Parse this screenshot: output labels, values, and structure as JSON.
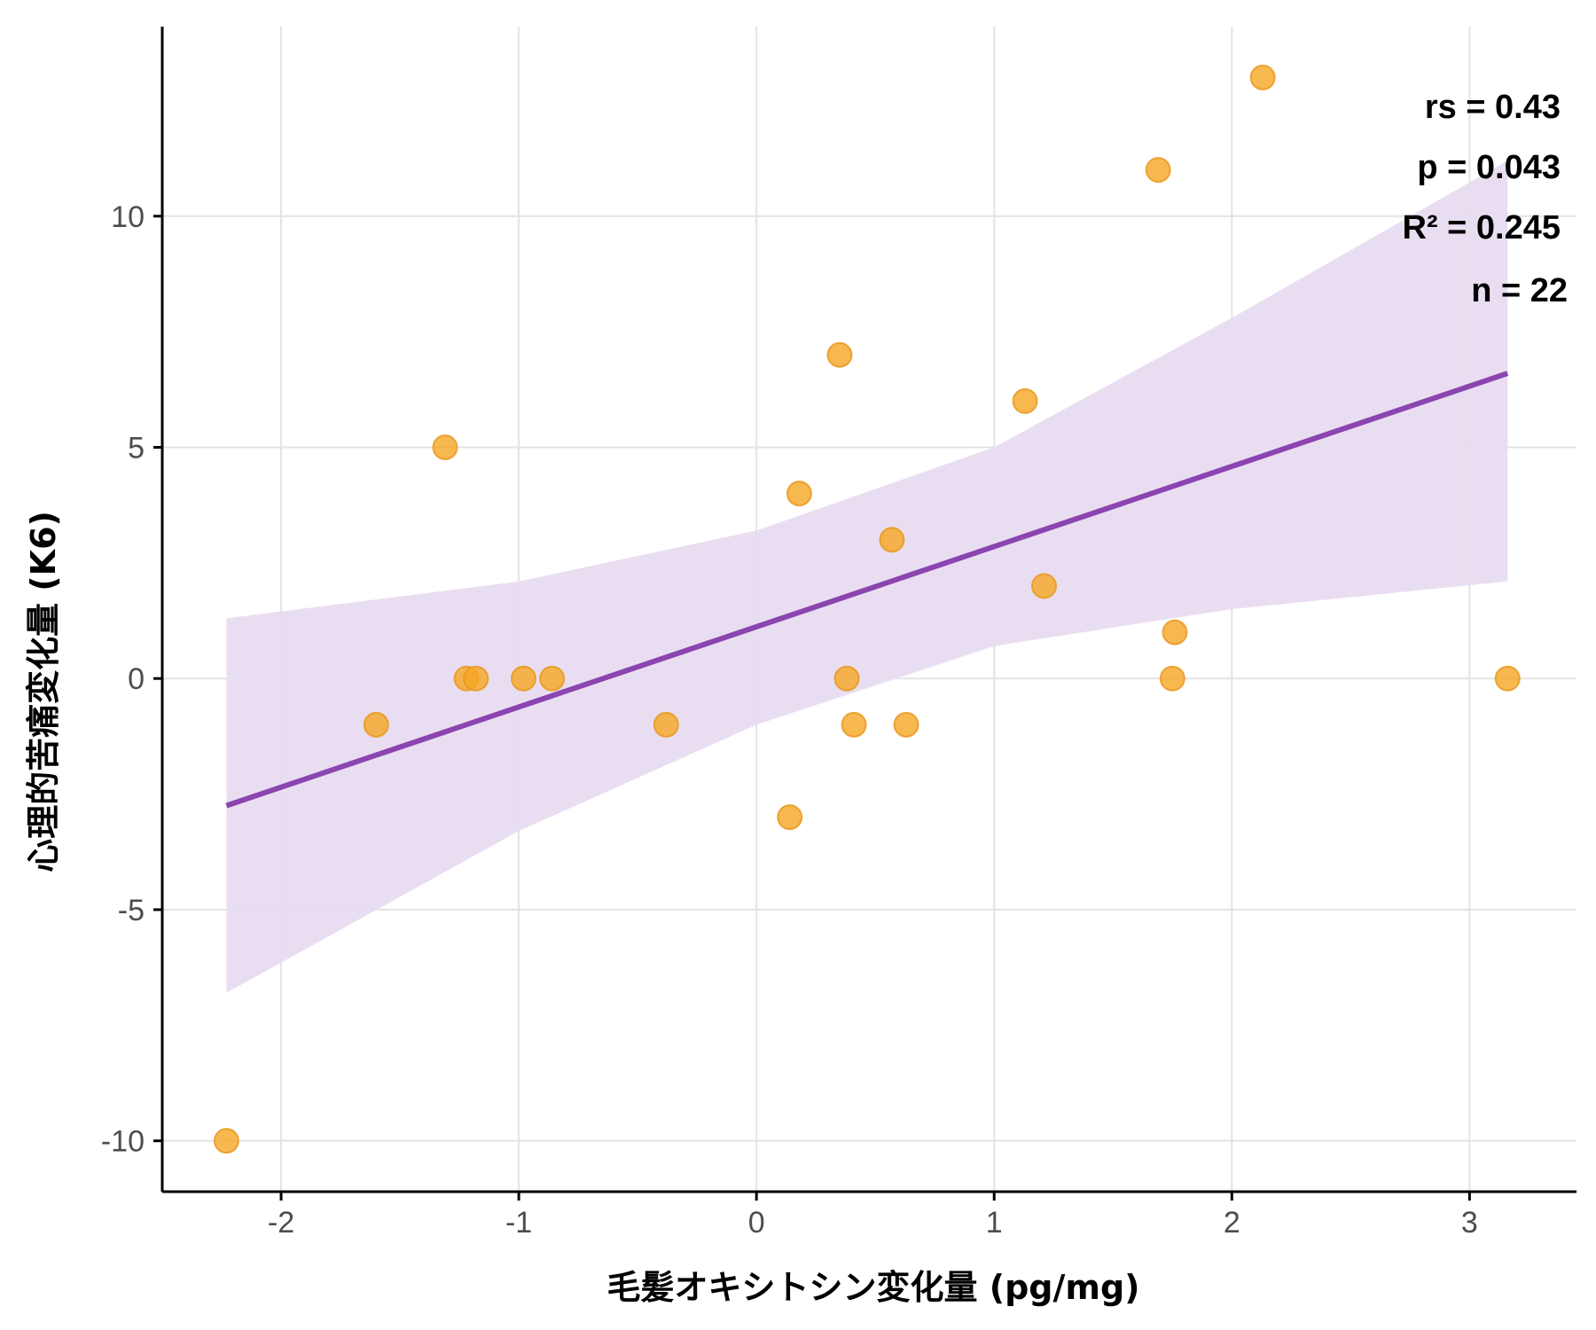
{
  "chart_data": {
    "type": "scatter",
    "xlabel": "毛髪オキシトシン変化量 (pg/mg)",
    "ylabel": "心理的苦痛変化量 (K6)",
    "xlim": [
      -2.5,
      3.45
    ],
    "ylim": [
      -11.1,
      14.1
    ],
    "x_ticks": [
      -2,
      -1,
      0,
      1,
      2,
      3
    ],
    "x_tick_labels": [
      "-2",
      "-1",
      "0",
      "1",
      "2",
      "3"
    ],
    "y_ticks": [
      -10,
      -5,
      0,
      5,
      10
    ],
    "y_tick_labels": [
      "-10",
      "-5",
      "0",
      "5",
      "10"
    ],
    "grid": true,
    "points": [
      {
        "x": -2.23,
        "y": -10
      },
      {
        "x": -1.6,
        "y": -1
      },
      {
        "x": -1.31,
        "y": 5
      },
      {
        "x": -1.22,
        "y": 0
      },
      {
        "x": -1.18,
        "y": 0
      },
      {
        "x": -0.98,
        "y": 0
      },
      {
        "x": -0.86,
        "y": 0
      },
      {
        "x": -0.38,
        "y": -1
      },
      {
        "x": 0.14,
        "y": -3
      },
      {
        "x": 0.18,
        "y": 4
      },
      {
        "x": 0.35,
        "y": 7
      },
      {
        "x": 0.38,
        "y": 0
      },
      {
        "x": 0.41,
        "y": -1
      },
      {
        "x": 0.57,
        "y": 3
      },
      {
        "x": 0.63,
        "y": -1
      },
      {
        "x": 1.13,
        "y": 6
      },
      {
        "x": 1.21,
        "y": 2
      },
      {
        "x": 1.69,
        "y": 11
      },
      {
        "x": 1.75,
        "y": 0
      },
      {
        "x": 1.76,
        "y": 1
      },
      {
        "x": 2.13,
        "y": 13
      },
      {
        "x": 3.16,
        "y": 0
      }
    ],
    "regression_line": {
      "x": [
        -2.23,
        3.16
      ],
      "y": [
        -2.75,
        6.6
      ]
    },
    "confidence_band": {
      "upper": [
        {
          "x": -2.23,
          "y": 1.3
        },
        {
          "x": -1.0,
          "y": 2.1
        },
        {
          "x": 0.0,
          "y": 3.2
        },
        {
          "x": 1.0,
          "y": 5.0
        },
        {
          "x": 2.0,
          "y": 7.8
        },
        {
          "x": 3.16,
          "y": 11.2
        }
      ],
      "lower": [
        {
          "x": 3.16,
          "y": 2.1
        },
        {
          "x": 2.0,
          "y": 1.5
        },
        {
          "x": 1.0,
          "y": 0.7
        },
        {
          "x": 0.0,
          "y": -1.0
        },
        {
          "x": -1.0,
          "y": -3.3
        },
        {
          "x": -2.23,
          "y": -6.8
        }
      ]
    },
    "annotations": [
      "rs = 0.43",
      "p = 0.043",
      "R² = 0.245",
      "n = 22"
    ],
    "colors": {
      "point": "#f5a623",
      "point_stroke": "#e8951a",
      "line": "#8b44b0",
      "band": "#e8dcf0",
      "grid": "#e3e3e3"
    }
  }
}
